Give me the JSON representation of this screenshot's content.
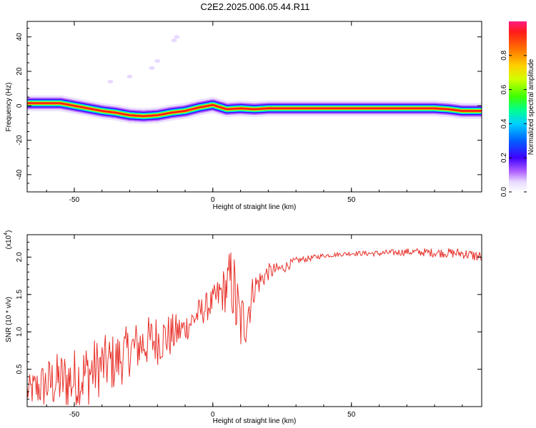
{
  "figure": {
    "title": "C2E2.2025.006.05.44.R11"
  },
  "colors": {
    "snr_line": "#e8322b",
    "background_spectro": "#ffffff",
    "colormap": [
      "#ffffff",
      "#e6d8ff",
      "#b060ff",
      "#4000ff",
      "#0060ff",
      "#00d0ff",
      "#00ff90",
      "#40ff00",
      "#d0ff00",
      "#ffd000",
      "#ff7000",
      "#ff1a1a",
      "#ff1a80"
    ]
  },
  "chart_data": [
    {
      "type": "heatmap",
      "title": "C2E2.2025.006.05.44.R11",
      "xlabel": "Height of straight line (km)",
      "ylabel": "Frequency (Hz)",
      "xlim": [
        -67,
        97
      ],
      "ylim": [
        -50,
        49
      ],
      "xticks": [
        -50,
        0,
        50
      ],
      "yticks": [
        -40,
        -20,
        0,
        20,
        40
      ],
      "colorbar": {
        "label": "Normalized spectral amplitude",
        "range": [
          0.0,
          1.0
        ],
        "ticks": [
          0.0,
          0.2,
          0.4,
          0.6,
          0.8
        ]
      },
      "ridge_frequency_hz": {
        "x": [
          -67,
          -60,
          -55,
          -50,
          -45,
          -40,
          -35,
          -30,
          -25,
          -20,
          -15,
          -10,
          -5,
          0,
          5,
          10,
          15,
          20,
          30,
          40,
          50,
          60,
          70,
          80,
          85,
          90,
          97
        ],
        "y": [
          1.5,
          1.5,
          1.5,
          0,
          -1.5,
          -3,
          -4,
          -5.5,
          -6,
          -5.5,
          -4,
          -3,
          -1,
          0.5,
          -2,
          -1.5,
          -2,
          -1.5,
          -1.5,
          -1.5,
          -1.5,
          -1.5,
          -1.5,
          -1.5,
          -2,
          -3,
          -3
        ]
      },
      "harmonic_points": {
        "x": [
          -37,
          -30,
          -22,
          -20,
          -14,
          -13
        ],
        "y": [
          14,
          17,
          22,
          26,
          38,
          40
        ]
      }
    },
    {
      "type": "line",
      "xlabel": "Height of straight line (km)",
      "ylabel": "SNR (10 * v/v)",
      "y_multiplier_label": "(x10",
      "y_multiplier_exponent": "4",
      "xlim": [
        -67,
        97
      ],
      "ylim": [
        0.0,
        2.3
      ],
      "xticks": [
        -50,
        0,
        50
      ],
      "yticks": [
        0.5,
        1.0,
        1.5,
        2.0
      ],
      "series": [
        {
          "x": [
            -67,
            -60,
            -55,
            -50,
            -45,
            -40,
            -35,
            -30,
            -25,
            -20,
            -15,
            -10,
            -5,
            0,
            5,
            7,
            8,
            10,
            12,
            15,
            20,
            25,
            30,
            40,
            50,
            60,
            70,
            80,
            90,
            97
          ],
          "y": [
            0.2,
            0.3,
            0.35,
            0.35,
            0.45,
            0.55,
            0.6,
            0.75,
            0.85,
            0.9,
            0.95,
            1.05,
            1.25,
            1.4,
            1.6,
            1.7,
            1.4,
            1.1,
            1.2,
            1.6,
            1.8,
            1.85,
            1.95,
            2.02,
            2.05,
            2.05,
            2.07,
            2.06,
            2.05,
            2.0
          ],
          "noise_amplitude": [
            0.2,
            0.35,
            0.4,
            0.45,
            0.45,
            0.4,
            0.4,
            0.35,
            0.35,
            0.35,
            0.3,
            0.2,
            0.2,
            0.2,
            0.35,
            0.55,
            0.6,
            0.45,
            0.4,
            0.2,
            0.12,
            0.08,
            0.05,
            0.03,
            0.03,
            0.04,
            0.05,
            0.06,
            0.07,
            0.08
          ]
        }
      ]
    }
  ]
}
